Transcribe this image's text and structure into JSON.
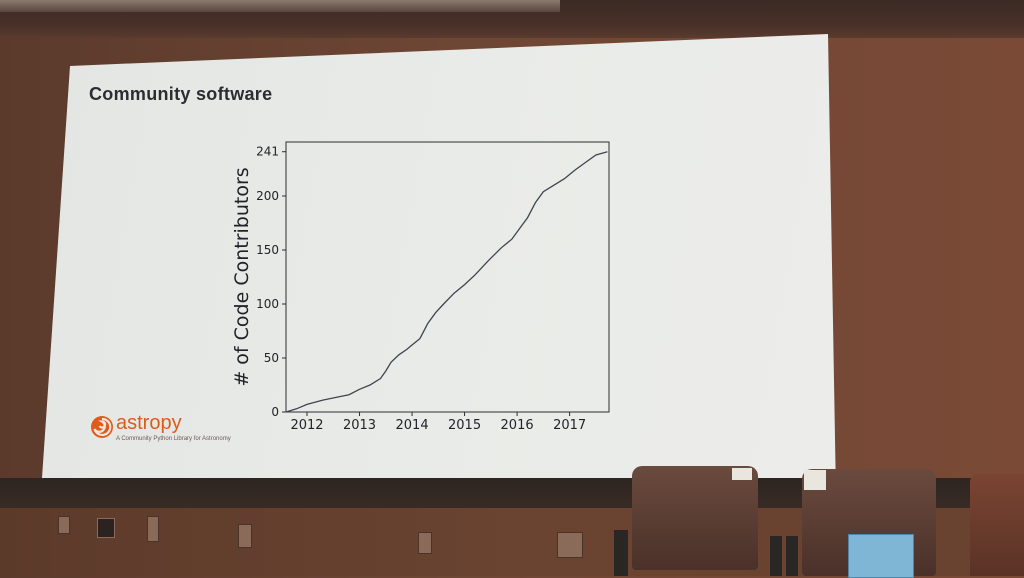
{
  "slide": {
    "title": "Community software",
    "logo": {
      "wordmark": "astropy",
      "tagline": "A Community Python Library for Astronomy"
    }
  },
  "chart_data": {
    "type": "line",
    "title": "",
    "xlabel": "",
    "ylabel": "# of Code Contributors",
    "xlim": [
      2011.6,
      2017.75
    ],
    "ylim": [
      0,
      250
    ],
    "x_ticks": [
      "2012",
      "2013",
      "2014",
      "2015",
      "2016",
      "2017"
    ],
    "y_ticks": [
      "0",
      "50",
      "100",
      "150",
      "200",
      "241"
    ],
    "grid": false,
    "series": [
      {
        "x": [
          2011.6,
          2011.8,
          2012.0,
          2012.3,
          2012.6,
          2012.8,
          2013.0,
          2013.2,
          2013.4,
          2013.5,
          2013.6,
          2013.75,
          2013.9,
          2014.0,
          2014.15,
          2014.3,
          2014.45,
          2014.6,
          2014.8,
          2015.0,
          2015.2,
          2015.45,
          2015.7,
          2015.9,
          2016.05,
          2016.2,
          2016.35,
          2016.5,
          2016.7,
          2016.9,
          2017.1,
          2017.3,
          2017.5,
          2017.72
        ],
        "values": [
          0,
          3,
          7,
          11,
          14,
          16,
          21,
          25,
          31,
          38,
          46,
          53,
          58,
          62,
          68,
          82,
          92,
          100,
          110,
          118,
          127,
          140,
          152,
          160,
          170,
          180,
          194,
          204,
          210,
          216,
          224,
          231,
          238,
          241
        ]
      }
    ]
  }
}
